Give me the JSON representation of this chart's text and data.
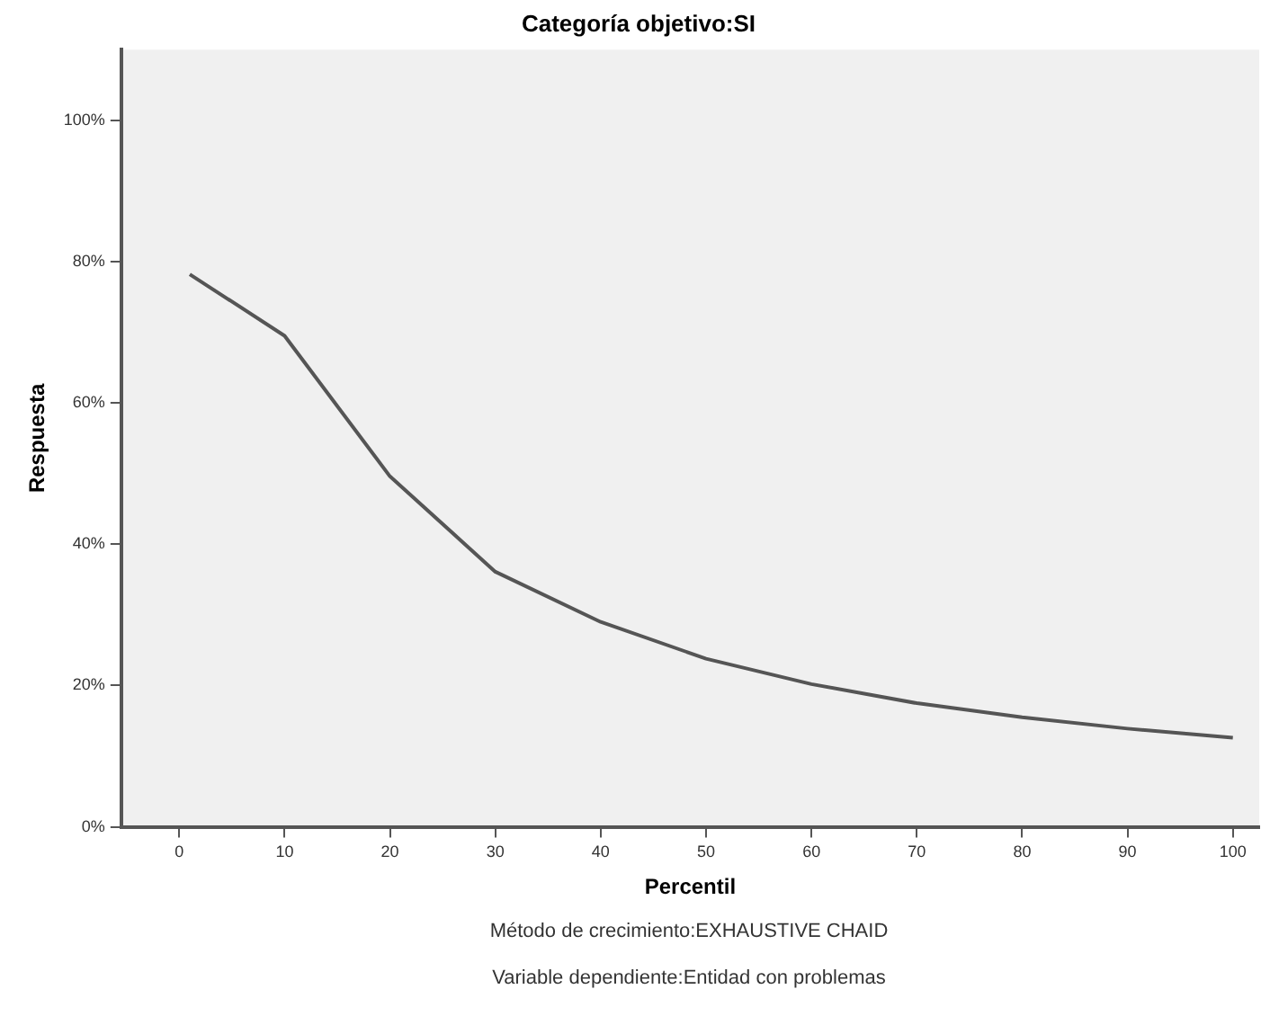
{
  "chart_data": {
    "type": "line",
    "title": "Categoría objetivo:SI",
    "xlabel": "Percentil",
    "ylabel": "Respuesta",
    "x": [
      1,
      10,
      20,
      30,
      40,
      50,
      60,
      70,
      80,
      90,
      100
    ],
    "series": [
      {
        "color": "#555555",
        "values": [
          78.2,
          69.5,
          49.6,
          36.1,
          29.0,
          23.8,
          20.2,
          17.5,
          15.5,
          13.9,
          12.6
        ]
      }
    ],
    "xlim": [
      -5.5,
      102.5
    ],
    "xticks": [
      0,
      10,
      20,
      30,
      40,
      50,
      60,
      70,
      80,
      90,
      100
    ],
    "ylim": [
      0,
      110
    ],
    "yticks": [
      {
        "value": 0,
        "label": "0%"
      },
      {
        "value": 20,
        "label": "20%"
      },
      {
        "value": 40,
        "label": "40%"
      },
      {
        "value": 60,
        "label": "60%"
      },
      {
        "value": 80,
        "label": "80%"
      },
      {
        "value": 100,
        "label": "100%"
      }
    ],
    "grid": false,
    "legend": false,
    "marker": "none",
    "line_style": "solid",
    "annotations": [
      "Método de crecimiento:EXHAUSTIVE CHAID",
      "Variable dependiente:Entidad con problemas"
    ]
  }
}
